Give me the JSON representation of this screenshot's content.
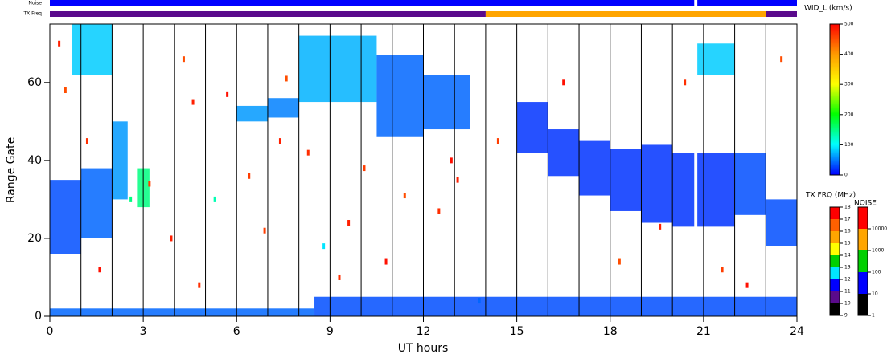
{
  "chart_data": {
    "type": "heatmap",
    "xlabel": "UT hours",
    "ylabel": "Range Gate",
    "xlim": [
      0,
      24
    ],
    "xticks": [
      0,
      3,
      6,
      9,
      12,
      15,
      18,
      21,
      24
    ],
    "ylim": [
      0,
      75
    ],
    "yticks": [
      0,
      20,
      40,
      60
    ],
    "markers": [
      1,
      2,
      3,
      4,
      5,
      6,
      7,
      8,
      9,
      10,
      11,
      12,
      13,
      14,
      15,
      16,
      17,
      18,
      19,
      20,
      21,
      22,
      23
    ],
    "width_label": "WID_L (km/s)",
    "wlim": [
      0,
      500
    ],
    "wticks": [
      0,
      100,
      200,
      300,
      400,
      500
    ],
    "width_colors": [
      "#0000ff",
      "#00ffff",
      "#00ff00",
      "#ffff00",
      "#ff9900",
      "#ff0000"
    ],
    "patches": [
      {
        "x": [
          0,
          1
        ],
        "gates": [
          16,
          35
        ],
        "width": 30
      },
      {
        "x": [
          1,
          2
        ],
        "gates": [
          20,
          38
        ],
        "width": 40
      },
      {
        "x": [
          2,
          2.5
        ],
        "gates": [
          30,
          50
        ],
        "width": 60
      },
      {
        "x": [
          0.7,
          2
        ],
        "gates": [
          62,
          75
        ],
        "width": 80
      },
      {
        "x": [
          6,
          7
        ],
        "gates": [
          50,
          54
        ],
        "width": 60
      },
      {
        "x": [
          7,
          8
        ],
        "gates": [
          51,
          56
        ],
        "width": 50
      },
      {
        "x": [
          8,
          10.5
        ],
        "gates": [
          55,
          72
        ],
        "width": 70
      },
      {
        "x": [
          10.5,
          12
        ],
        "gates": [
          46,
          67
        ],
        "width": 40
      },
      {
        "x": [
          12,
          13.5
        ],
        "gates": [
          48,
          62
        ],
        "width": 40
      },
      {
        "x": [
          15,
          16
        ],
        "gates": [
          42,
          55
        ],
        "width": 20
      },
      {
        "x": [
          16,
          17
        ],
        "gates": [
          36,
          48
        ],
        "width": 20
      },
      {
        "x": [
          17,
          18
        ],
        "gates": [
          31,
          45
        ],
        "width": 20
      },
      {
        "x": [
          18,
          19
        ],
        "gates": [
          27,
          43
        ],
        "width": 20
      },
      {
        "x": [
          19,
          20
        ],
        "gates": [
          24,
          44
        ],
        "width": 20
      },
      {
        "x": [
          20,
          20.7
        ],
        "gates": [
          23,
          42
        ],
        "width": 20
      },
      {
        "x": [
          20.8,
          22
        ],
        "gates": [
          23,
          42
        ],
        "width": 20
      },
      {
        "x": [
          22,
          23
        ],
        "gates": [
          26,
          42
        ],
        "width": 30
      },
      {
        "x": [
          23,
          24
        ],
        "gates": [
          18,
          30
        ],
        "width": 30
      },
      {
        "x": [
          20.8,
          22
        ],
        "gates": [
          62,
          70
        ],
        "width": 80
      },
      {
        "x": [
          8.5,
          24
        ],
        "gates": [
          0,
          5
        ],
        "width": 30
      },
      {
        "x": [
          0,
          8.5
        ],
        "gates": [
          0,
          2
        ],
        "width": 40
      },
      {
        "x": [
          2.8,
          3.2
        ],
        "gates": [
          28,
          38
        ],
        "width": 150
      }
    ],
    "points": {
      "x": [
        0.3,
        0.5,
        1.2,
        1.6,
        2.6,
        3.2,
        3.9,
        4.3,
        4.8,
        5.3,
        5.7,
        6.4,
        7.4,
        7.6,
        8.3,
        8.8,
        9.6,
        10.1,
        10.8,
        11.4,
        12.5,
        13.1,
        13.8,
        14.4,
        16.5,
        18.3,
        19.6,
        20.4,
        21.6,
        22.4,
        23.5,
        4.6,
        6.9,
        9.3,
        12.9
      ],
      "y": [
        70,
        58,
        45,
        12,
        30,
        34,
        20,
        66,
        8,
        30,
        57,
        36,
        45,
        61,
        42,
        18,
        24,
        38,
        14,
        31,
        27,
        35,
        4,
        45,
        60,
        14,
        23,
        60,
        12,
        8,
        66,
        55,
        22,
        10,
        40
      ],
      "values": [
        480,
        450,
        470,
        490,
        150,
        460,
        480,
        450,
        470,
        130,
        490,
        460,
        480,
        450,
        470,
        90,
        480,
        460,
        490,
        450,
        470,
        480,
        40,
        460,
        490,
        450,
        480,
        470,
        460,
        490,
        450,
        480,
        460,
        470,
        490
      ]
    },
    "noise_label": "Noise",
    "noise": [
      {
        "x": [
          0,
          20.7
        ],
        "value": 50
      },
      {
        "x": [
          20.8,
          24
        ],
        "value": 50
      }
    ],
    "txfreq_label": "TX Freq",
    "txfreq": [
      {
        "x": [
          0,
          14
        ],
        "value": 10
      },
      {
        "x": [
          14,
          23
        ],
        "value": 15
      },
      {
        "x": [
          23,
          24
        ],
        "value": 10
      }
    ],
    "tx_scale_label": "TX FRQ (MHz)",
    "tx_lim": [
      9,
      18
    ],
    "tx_ticks": [
      9,
      10,
      11,
      12,
      13,
      14,
      15,
      16,
      17,
      18
    ],
    "tx_colors": [
      "#000000",
      "#5a0a8c",
      "#0000ff",
      "#00e5ff",
      "#00d000",
      "#ffff00",
      "#ffa500",
      "#ff6000",
      "#ff0000"
    ],
    "noise_scale_label": "NOISE",
    "noise_lim": [
      1,
      100000
    ],
    "noise_ticks": [
      1,
      10,
      100,
      1000,
      10000
    ],
    "noise_colors": [
      "#000000",
      "#0000ff",
      "#00d000",
      "#ffa500",
      "#ff0000"
    ],
    "noise_log": true
  }
}
